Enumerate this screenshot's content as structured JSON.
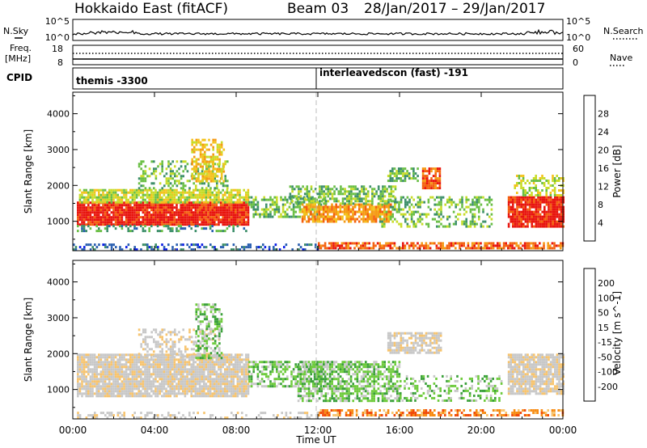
{
  "header": {
    "title": "Hokkaido East (fitACF)",
    "beam": "Beam 03",
    "date_range": "28/Jan/2017 – 29/Jan/2017"
  },
  "top_panels": {
    "nsky_label": "N.Sky",
    "nsky_ticks": [
      "10^5",
      "10^0"
    ],
    "nsearch_label": "N.Search",
    "nsearch_ticks": [
      "10^5",
      "10^0"
    ],
    "freq_label": "Freq.",
    "freq_unit": "[MHz]",
    "freq_ticks": [
      "18",
      "8"
    ],
    "nave_label": "Nave",
    "nave_ticks": [
      "60",
      "0"
    ],
    "cpid_label": "CPID",
    "cpid_entries": [
      "themis -3300",
      "interleavedscon (fast) -191"
    ]
  },
  "time_axis": {
    "label": "Time UT",
    "ticks": [
      "00:00",
      "04:00",
      "08:00",
      "12:00",
      "16:00",
      "20:00",
      "00:00"
    ]
  },
  "colors": {
    "power_scale": [
      "#0a1ee6",
      "#2a5fb0",
      "#3d8f6a",
      "#6abf45",
      "#c8dc28",
      "#f4c21c",
      "#f59a14",
      "#f4600e",
      "#e8150e"
    ],
    "velocity_scale": [
      "#e6140a",
      "#f04a0a",
      "#f78c14",
      "#f7c46e",
      "#c8c8c8",
      "#c8c8c8",
      "#6ecb3c",
      "#3aa03a",
      "#2c6fb4",
      "#1e2ad2"
    ],
    "nsky_line": "#000000",
    "midnight_marker": "#bbbbbb"
  },
  "chart_data": [
    {
      "type": "heatmap",
      "name": "power",
      "ylabel": "Slant Range [km]",
      "xlabel": "",
      "colorbar_label": "Power [dB]",
      "colorbar_ticks": [
        "28",
        "24",
        "20",
        "16",
        "12",
        "8",
        "4"
      ],
      "x_range_hours": [
        0,
        24
      ],
      "ylim": [
        180,
        4600
      ],
      "yticks": [
        1000,
        2000,
        3000,
        4000
      ],
      "regions": [
        {
          "t": [
            0.2,
            8.6
          ],
          "r": [
            900,
            1550
          ],
          "level": 8,
          "density": 0.95
        },
        {
          "t": [
            0.3,
            8.6
          ],
          "r": [
            1550,
            1900
          ],
          "level": 4,
          "density": 0.8
        },
        {
          "t": [
            0.2,
            8.6
          ],
          "r": [
            700,
            900
          ],
          "level": 2,
          "density": 0.4
        },
        {
          "t": [
            3.2,
            7.6
          ],
          "r": [
            1900,
            2700
          ],
          "level": 3,
          "density": 0.35
        },
        {
          "t": [
            5.8,
            7.4
          ],
          "r": [
            2100,
            3300
          ],
          "level": 5,
          "density": 0.55
        },
        {
          "t": [
            8.6,
            12.4
          ],
          "r": [
            1100,
            1700
          ],
          "level": 3,
          "density": 0.55
        },
        {
          "t": [
            11.2,
            15.6
          ],
          "r": [
            1000,
            1500
          ],
          "level": 6,
          "density": 0.8
        },
        {
          "t": [
            10.6,
            15.8
          ],
          "r": [
            1500,
            2000
          ],
          "level": 3,
          "density": 0.55
        },
        {
          "t": [
            15.0,
            20.5
          ],
          "r": [
            850,
            1700
          ],
          "level": 3,
          "density": 0.35
        },
        {
          "t": [
            15.4,
            16.9
          ],
          "r": [
            2100,
            2500
          ],
          "level": 3,
          "density": 0.6
        },
        {
          "t": [
            17.1,
            18.0
          ],
          "r": [
            1950,
            2500
          ],
          "level": 7,
          "density": 0.85
        },
        {
          "t": [
            21.3,
            24.0
          ],
          "r": [
            850,
            1700
          ],
          "level": 8,
          "density": 0.9
        },
        {
          "t": [
            21.6,
            24.0
          ],
          "r": [
            1700,
            2300
          ],
          "level": 4,
          "density": 0.5
        },
        {
          "t": [
            12.0,
            24.0
          ],
          "r": [
            250,
            420
          ],
          "level": 7,
          "density": 0.7
        },
        {
          "t": [
            0.0,
            12.0
          ],
          "r": [
            200,
            380
          ],
          "level": 1,
          "density": 0.35
        }
      ]
    },
    {
      "type": "heatmap",
      "name": "velocity",
      "ylabel": "Slant Range [km]",
      "xlabel": "Time UT",
      "colorbar_label": "Velocity [m s^-1]",
      "colorbar_ticks": [
        "200",
        "100",
        "50",
        "15",
        "-15",
        "-50",
        "-100",
        "-200"
      ],
      "x_range_hours": [
        0,
        24
      ],
      "ylim": [
        180,
        4600
      ],
      "yticks": [
        1000,
        2000,
        3000,
        4000
      ],
      "regions": [
        {
          "t": [
            0.2,
            8.6
          ],
          "r": [
            800,
            2000
          ],
          "level": 4,
          "density": 0.9
        },
        {
          "t": [
            3.2,
            7.2
          ],
          "r": [
            1900,
            2700
          ],
          "level": 4,
          "density": 0.4
        },
        {
          "t": [
            6.0,
            7.3
          ],
          "r": [
            1900,
            3400
          ],
          "level": 6,
          "density": 0.5
        },
        {
          "t": [
            8.6,
            12.5
          ],
          "r": [
            1100,
            1800
          ],
          "level": 6,
          "density": 0.55
        },
        {
          "t": [
            11.0,
            16.0
          ],
          "r": [
            700,
            1800
          ],
          "level": 6,
          "density": 0.65
        },
        {
          "t": [
            16.0,
            21.0
          ],
          "r": [
            700,
            1400
          ],
          "level": 6,
          "density": 0.35
        },
        {
          "t": [
            15.4,
            18.0
          ],
          "r": [
            2000,
            2600
          ],
          "level": 4,
          "density": 0.7
        },
        {
          "t": [
            21.3,
            24.0
          ],
          "r": [
            900,
            2000
          ],
          "level": 4,
          "density": 0.85
        },
        {
          "t": [
            12.0,
            24.0
          ],
          "r": [
            250,
            450
          ],
          "level": 2,
          "density": 0.55
        },
        {
          "t": [
            0.0,
            12.0
          ],
          "r": [
            200,
            380
          ],
          "level": 4,
          "density": 0.35
        }
      ]
    }
  ]
}
